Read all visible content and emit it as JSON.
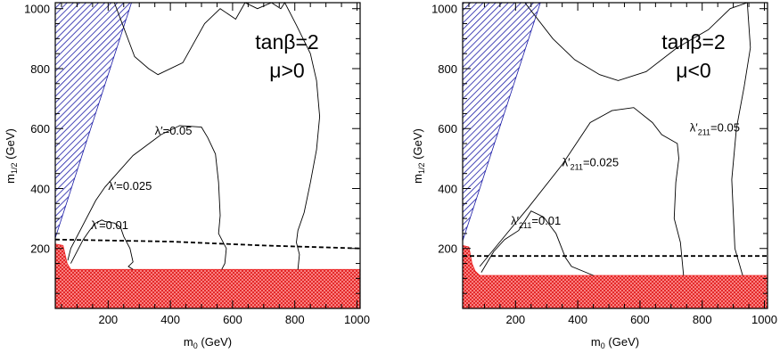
{
  "chart_data": [
    {
      "type": "line",
      "title": "",
      "xlabel": "m_0 (GeV)",
      "ylabel": "m_1/2 (GeV)",
      "xlim": [
        30,
        1010
      ],
      "ylim": [
        0,
        1020
      ],
      "x_ticks": [
        200,
        400,
        600,
        800,
        1000
      ],
      "y_ticks": [
        200,
        400,
        600,
        800,
        1000
      ],
      "grid": false,
      "annotation": {
        "line1": "tanβ=2",
        "line2": "μ>0"
      },
      "regions": [
        {
          "name": "blue-hatched",
          "color": "#1a1aa6",
          "points": [
            [
              30,
              1020
            ],
            [
              275,
              1020
            ],
            [
              30,
              235
            ]
          ]
        },
        {
          "name": "red-hatched",
          "color": "#ee2222",
          "points": [
            [
              30,
              0
            ],
            [
              30,
              215
            ],
            [
              55,
              210
            ],
            [
              68,
              150
            ],
            [
              80,
              130
            ],
            [
              1010,
              130
            ],
            [
              1010,
              0
            ]
          ]
        }
      ],
      "dashed_line": {
        "label": "",
        "points": [
          [
            30,
            230
          ],
          [
            400,
            223
          ],
          [
            700,
            210
          ],
          [
            1010,
            200
          ]
        ]
      },
      "series": [
        {
          "name": "λ'=0.01",
          "label_text": "λ′=0.01",
          "label_at": [
            145,
            265
          ],
          "x": [
            80,
            100,
            120,
            140,
            160,
            180,
            190,
            220,
            240,
            250,
            270,
            280,
            265,
            280
          ],
          "y": [
            150,
            190,
            230,
            260,
            285,
            295,
            290,
            285,
            270,
            240,
            200,
            155,
            140,
            130
          ]
        },
        {
          "name": "λ'=0.025",
          "label_text": "λ′=0.025",
          "label_at": [
            200,
            395
          ],
          "x": [
            70,
            80,
            160,
            190,
            280,
            370,
            430,
            500,
            520,
            545,
            555,
            560,
            555,
            580,
            575,
            565
          ],
          "y": [
            160,
            200,
            360,
            405,
            510,
            580,
            610,
            605,
            570,
            515,
            420,
            310,
            250,
            200,
            150,
            130
          ]
        },
        {
          "name": "λ'=0.05",
          "label_text": "λ′=0.05",
          "label_at": [
            350,
            580
          ],
          "x": [
            220,
            285,
            330,
            360,
            440,
            510,
            560,
            610,
            640,
            680,
            725,
            755,
            768,
            805,
            850,
            870,
            880,
            870,
            850,
            830,
            810,
            805,
            815,
            810
          ],
          "y": [
            1020,
            840,
            800,
            780,
            820,
            950,
            1000,
            965,
            1020,
            1000,
            1020,
            1000,
            1020,
            945,
            850,
            760,
            640,
            530,
            420,
            320,
            260,
            220,
            180,
            130
          ]
        }
      ]
    },
    {
      "type": "line",
      "title": "",
      "xlabel": "m_0 (GeV)",
      "ylabel": "m_1/2 (GeV)",
      "xlim": [
        30,
        1010
      ],
      "ylim": [
        0,
        1020
      ],
      "x_ticks": [
        200,
        400,
        600,
        800,
        1000
      ],
      "y_ticks": [
        200,
        400,
        600,
        800,
        1000
      ],
      "grid": false,
      "annotation": {
        "line1": "tanβ=2",
        "line2": "μ<0"
      },
      "regions": [
        {
          "name": "blue-hatched",
          "color": "#1a1aa6",
          "points": [
            [
              30,
              1020
            ],
            [
              280,
              1020
            ],
            [
              30,
              225
            ]
          ]
        },
        {
          "name": "red-hatched",
          "color": "#ee2222",
          "points": [
            [
              30,
              0
            ],
            [
              30,
              210
            ],
            [
              50,
              205
            ],
            [
              60,
              150
            ],
            [
              70,
              125
            ],
            [
              85,
              110
            ],
            [
              1010,
              110
            ],
            [
              1010,
              0
            ]
          ]
        }
      ],
      "dashed_line": {
        "label": "",
        "points": [
          [
            30,
            175
          ],
          [
            1010,
            175
          ]
        ]
      },
      "series": [
        {
          "name": "λ'211=0.01",
          "label_text": "λ′211=0.01",
          "label_at": [
            185,
            280
          ],
          "x": [
            90,
            130,
            165,
            210,
            250,
            290,
            330,
            360,
            380,
            450
          ],
          "y": [
            120,
            190,
            230,
            260,
            325,
            305,
            250,
            170,
            140,
            110
          ]
        },
        {
          "name": "λ'211=0.025",
          "label_text": "λ′211=0.025",
          "label_at": [
            350,
            475
          ],
          "x": [
            85,
            180,
            240,
            350,
            440,
            510,
            580,
            640,
            670,
            720,
            725,
            715,
            710,
            730,
            740
          ],
          "y": [
            140,
            260,
            335,
            480,
            620,
            660,
            670,
            620,
            580,
            550,
            500,
            420,
            300,
            220,
            110
          ]
        },
        {
          "name": "λ'211=0.05",
          "label_text": "λ′211=0.05",
          "label_at": [
            760,
            590
          ],
          "x": [
            230,
            320,
            390,
            470,
            530,
            620,
            720,
            820,
            890,
            945,
            955,
            935,
            910,
            895,
            905,
            930
          ],
          "y": [
            1020,
            900,
            830,
            780,
            760,
            790,
            870,
            930,
            1000,
            1020,
            870,
            740,
            600,
            430,
            200,
            110
          ]
        }
      ]
    }
  ]
}
